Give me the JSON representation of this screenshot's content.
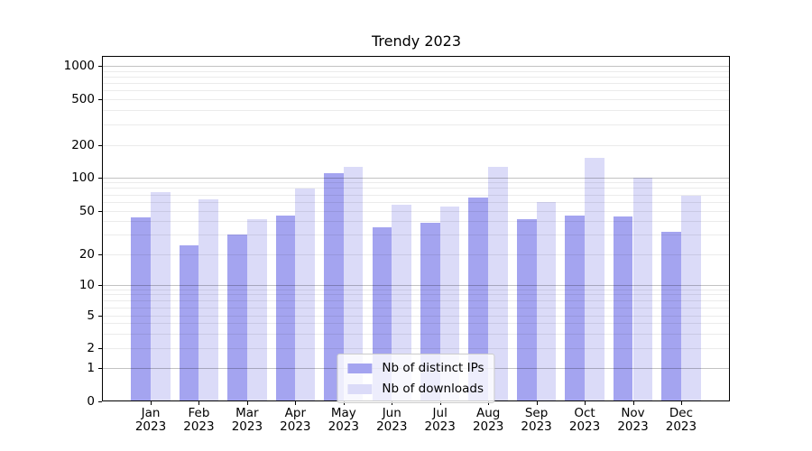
{
  "chart_data": {
    "type": "bar",
    "title": "Trendy 2023",
    "categories": [
      "Jan",
      "Feb",
      "Mar",
      "Apr",
      "May",
      "Jun",
      "Jul",
      "Aug",
      "Sep",
      "Oct",
      "Nov",
      "Dec"
    ],
    "year_label": "2023",
    "yscale": "symlog",
    "yticks": [
      0,
      1,
      2,
      5,
      10,
      20,
      50,
      100,
      200,
      500,
      1000
    ],
    "ylim": [
      0,
      1300
    ],
    "grid": true,
    "legend_position": "lower center",
    "series": [
      {
        "name": "Nb of distinct IPs",
        "color": "#a4a4f0",
        "values": [
          43,
          24,
          30,
          45,
          110,
          35,
          39,
          66,
          42,
          45,
          44,
          32
        ]
      },
      {
        "name": "Nb of downloads",
        "color": "#dbdbf8",
        "values": [
          73,
          63,
          42,
          79,
          125,
          57,
          54,
          125,
          60,
          152,
          100,
          68
        ]
      }
    ]
  }
}
